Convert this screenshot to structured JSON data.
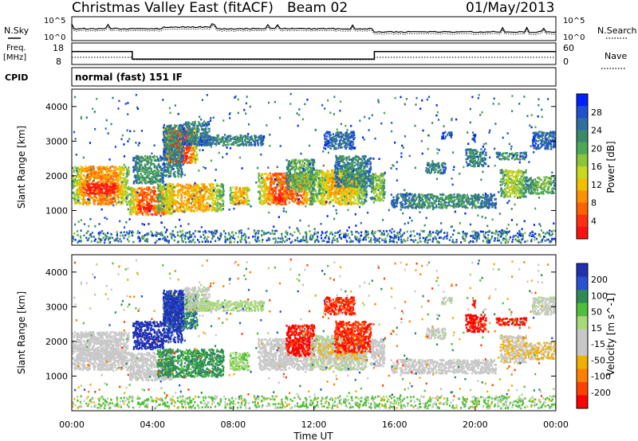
{
  "header": {
    "title": "Christmas Valley East (fitACF)",
    "beam": "Beam 02",
    "date": "01/May/2013"
  },
  "strips": {
    "nsky_label": "N.Sky",
    "nsearch_label": "N.Search",
    "freq_label_1": "Freq.",
    "freq_label_2": "[MHz]",
    "nave_label": "Nave",
    "cpid_label": "CPID",
    "cpid_value": "normal (fast) 151 IF",
    "noise_ticks_left": [
      "10^5",
      "10^0"
    ],
    "noise_ticks_right": [
      "10^5",
      "10^0"
    ],
    "freq_ticks_left": [
      "18",
      "8"
    ],
    "nave_ticks_right": [
      "60",
      "0"
    ]
  },
  "colorbars": {
    "power": {
      "label": "Power [dB]",
      "ticks": [
        "28",
        "24",
        "20",
        "16",
        "12",
        "8",
        "4"
      ],
      "colors": [
        "#0020ff",
        "#2050d0",
        "#2f6e9f",
        "#3a8a6a",
        "#4fa85a",
        "#8cc43a",
        "#c8d820",
        "#f0c000",
        "#ff9000",
        "#ff6000",
        "#ff3010",
        "#ff1010"
      ]
    },
    "velocity": {
      "label": "Velocity [m s^-1]",
      "ticks": [
        "200",
        "100",
        "50",
        "15",
        "-15",
        "-50",
        "-100",
        "-200"
      ],
      "colors": [
        "#2030b0",
        "#2850d0",
        "#2e8b57",
        "#4fbf3a",
        "#a8d878",
        "#c8c8c8",
        "#c8c8c8",
        "#f0b000",
        "#ff8000",
        "#ff4000",
        "#ff0000"
      ]
    }
  },
  "chart_data": [
    {
      "type": "heatmap",
      "panel": "power",
      "xlabel": "",
      "ylabel": "Slant Range [km]",
      "ylim": [
        0,
        4500
      ],
      "yticks": [
        "1000",
        "2000",
        "3000",
        "4000"
      ],
      "xlim": [
        0,
        24
      ],
      "colorbar_label": "Power [dB]",
      "clim": [
        0,
        30
      ]
    },
    {
      "type": "heatmap",
      "panel": "velocity",
      "xlabel": "Time UT",
      "ylabel": "Slant Range [km]",
      "ylim": [
        0,
        4500
      ],
      "yticks": [
        "1000",
        "2000",
        "3000",
        "4000"
      ],
      "xlim": [
        0,
        24
      ],
      "xticks": [
        "00:00",
        "04:00",
        "08:00",
        "12:00",
        "16:00",
        "20:00",
        "00:00"
      ],
      "colorbar_label": "Velocity [m s^-1]",
      "clim": [
        -250,
        250
      ]
    },
    {
      "type": "line",
      "panel": "frequency",
      "series": [
        {
          "name": "Freq.",
          "x": [
            0,
            3,
            3,
            15,
            15,
            24
          ],
          "y": [
            14,
            14,
            10.5,
            10.5,
            14,
            14
          ]
        }
      ]
    }
  ]
}
